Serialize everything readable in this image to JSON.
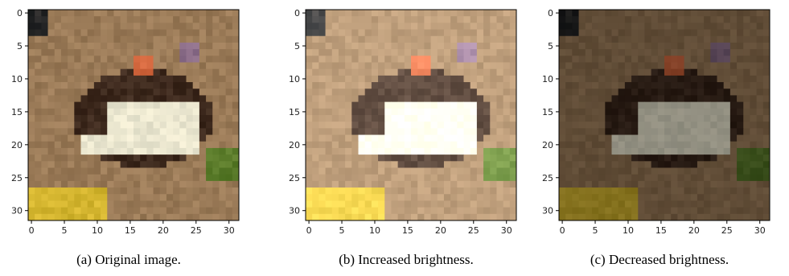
{
  "figures": [
    {
      "id": "a",
      "caption": "(a) Original image."
    },
    {
      "id": "b",
      "caption": "(b) Increased brightness."
    },
    {
      "id": "c",
      "caption": "(c) Decreased brightness."
    }
  ],
  "axes": {
    "x_ticks": [
      "0",
      "5",
      "10",
      "15",
      "20",
      "25",
      "30"
    ],
    "y_ticks": [
      "0",
      "5",
      "10",
      "15",
      "20",
      "25",
      "30"
    ],
    "range": [
      0,
      31
    ]
  },
  "image_palette": {
    "background": "#9a7a57",
    "frog_body": "#eae6cf",
    "frog_dark": "#3e2a1e",
    "frog_head_accent": "#d0653c",
    "eye": "#8d6f8a",
    "yellow_leaf": "#d4b52f",
    "green_leaf": "#5a7b2a"
  }
}
